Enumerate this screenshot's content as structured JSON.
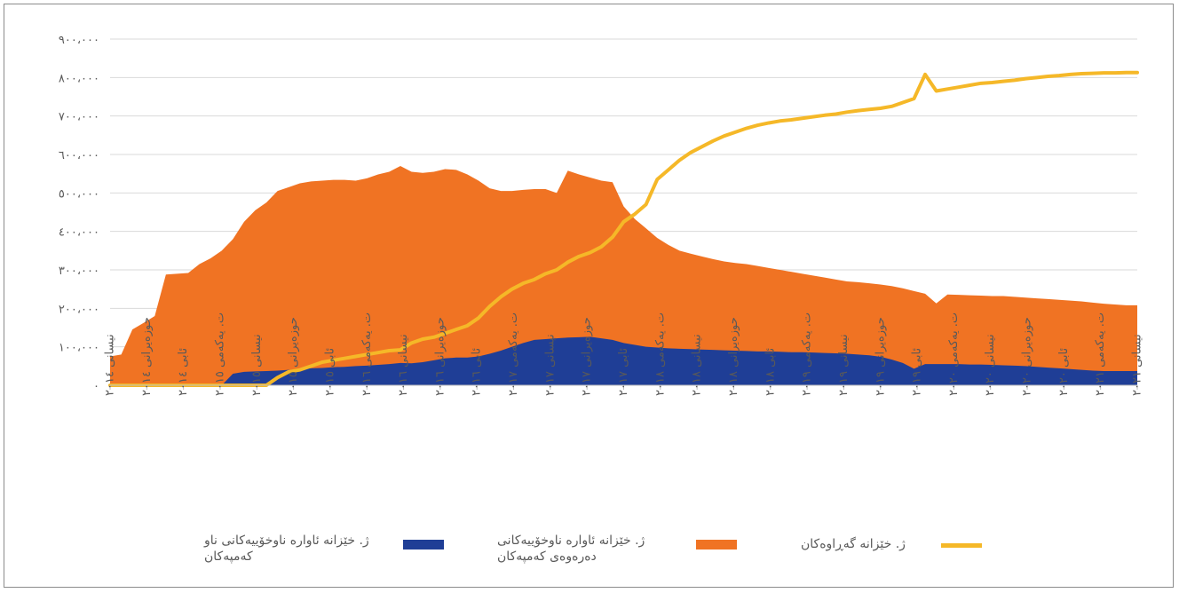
{
  "chart_data": {
    "type": "area",
    "y_ticks": [
      "٠",
      "١٠٠،٠٠٠",
      "٢٠٠،٠٠٠",
      "٣٠٠،٠٠٠",
      "٤٠٠،٠٠٠",
      "٥٠٠،٠٠٠",
      "٦٠٠،٠٠٠",
      "٧٠٠،٠٠٠",
      "٨٠٠،٠٠٠",
      "٩٠٠،٠٠٠"
    ],
    "ylim": [
      0,
      900000
    ],
    "x_tick_labels": [
      "نیسانی ٢٠١٤",
      "حوزەیرانی ٢٠١٤",
      "ئابی ٢٠١٤",
      "ت. یەکەمی ٢٠١٥",
      "نیسانی ٢٠١٥",
      "حوزەیرانی ٢٠١٥",
      "ئابی ٢٠١٥",
      "ت. یەکەمی ٢٠١٦",
      "نیسانی ٢٠١٦",
      "حوزەیرانی ٢٠١٦",
      "ئابی ٢٠١٦",
      "ت. یەکەمی ٢٠١٧",
      "نیسانی ٢٠١٧",
      "حوزەیرانی ٢٠١٧",
      "ئابی ٢٠١٧",
      "ت. یەکەمی ٢٠١٨",
      "نیسانی ٢٠١٨",
      "حوزەیرانی ٢٠١٨",
      "ئابی ٢٠١٨",
      "ت. یەکەمی ٢٠١٩",
      "نیسانی ٢٠١٩",
      "حوزەیرانی ٢٠١٩",
      "ئابی ٢٠١٩",
      "ت. یەکەمی ٢٠٢٠",
      "نیسانی ٢٠٢٠",
      "حوزەیرانی ٢٠٢٠",
      "ئابی ٢٠٢٠",
      "ت. یەکەمی ٢٠٢١",
      "نیسانی ٢٠٢١"
    ],
    "series": [
      {
        "name": "ژ. خێزانە ئاوارە ناوخۆییەکانی دەرەوەی کەمپەکان",
        "kind": "area",
        "color": "#F07323",
        "values": [
          75000,
          80000,
          145000,
          162000,
          180000,
          288000,
          290000,
          292000,
          315000,
          330000,
          350000,
          380000,
          425000,
          455000,
          475000,
          505000,
          515000,
          525000,
          530000,
          532000,
          534000,
          534000,
          532000,
          538000,
          548000,
          555000,
          570000,
          555000,
          552000,
          555000,
          562000,
          560000,
          548000,
          532000,
          512000,
          505000,
          505000,
          508000,
          510000,
          510000,
          500000,
          558000,
          548000,
          540000,
          532000,
          528000,
          465000,
          432000,
          408000,
          383000,
          365000,
          350000,
          342000,
          335000,
          328000,
          322000,
          318000,
          315000,
          310000,
          305000,
          300000,
          295000,
          290000,
          285000,
          280000,
          275000,
          270000,
          268000,
          265000,
          262000,
          258000,
          252000,
          245000,
          238000,
          213000,
          236000,
          235000,
          234000,
          233000,
          232000,
          232000,
          230000,
          228000,
          226000,
          224000,
          222000,
          220000,
          218000,
          215000,
          212000,
          210000,
          208000,
          208000
        ]
      },
      {
        "name": "ژ. خێزانە ئاوارە ناوخۆییەکانی ناو کەمپەکان",
        "kind": "area",
        "color": "#1F3E96",
        "values": [
          0,
          0,
          0,
          0,
          0,
          0,
          0,
          0,
          0,
          0,
          0,
          30000,
          35000,
          36000,
          37000,
          38000,
          40000,
          42000,
          44000,
          45000,
          47000,
          48000,
          50000,
          51000,
          53000,
          55000,
          58000,
          57000,
          60000,
          65000,
          70000,
          72000,
          72000,
          75000,
          82000,
          90000,
          100000,
          110000,
          118000,
          120000,
          122000,
          124000,
          125000,
          126000,
          122000,
          118000,
          110000,
          105000,
          100000,
          98000,
          96000,
          95000,
          94000,
          93000,
          92000,
          91000,
          90000,
          89000,
          88000,
          88000,
          87000,
          86000,
          86000,
          85000,
          84000,
          83000,
          82000,
          80000,
          78000,
          74000,
          67000,
          58000,
          43000,
          55000,
          55000,
          55000,
          55000,
          54000,
          54000,
          53000,
          52000,
          51000,
          50000,
          48000,
          46000,
          44000,
          42000,
          40000,
          38000,
          37000,
          37000,
          37000,
          37000
        ]
      },
      {
        "name": "ژ. خێزانە گەڕاوەکان",
        "kind": "line",
        "color": "#F5B828",
        "values": [
          0,
          0,
          0,
          0,
          0,
          0,
          0,
          0,
          0,
          0,
          0,
          0,
          0,
          0,
          0,
          20000,
          35000,
          40000,
          50000,
          60000,
          65000,
          70000,
          75000,
          80000,
          85000,
          90000,
          92000,
          110000,
          120000,
          125000,
          135000,
          145000,
          155000,
          175000,
          205000,
          230000,
          250000,
          265000,
          275000,
          290000,
          300000,
          320000,
          335000,
          345000,
          360000,
          385000,
          425000,
          445000,
          470000,
          535000,
          560000,
          585000,
          605000,
          620000,
          635000,
          648000,
          658000,
          668000,
          676000,
          682000,
          687000,
          690000,
          694000,
          698000,
          702000,
          705000,
          710000,
          714000,
          717000,
          720000,
          725000,
          735000,
          745000,
          808000,
          765000,
          770000,
          775000,
          780000,
          785000,
          787000,
          790000,
          793000,
          797000,
          800000,
          803000,
          805000,
          808000,
          810000,
          811000,
          812000,
          812000,
          813000,
          813000
        ]
      }
    ],
    "grid": "horizontal",
    "legend_position": "bottom",
    "title": "",
    "xlabel": "",
    "ylabel": ""
  }
}
